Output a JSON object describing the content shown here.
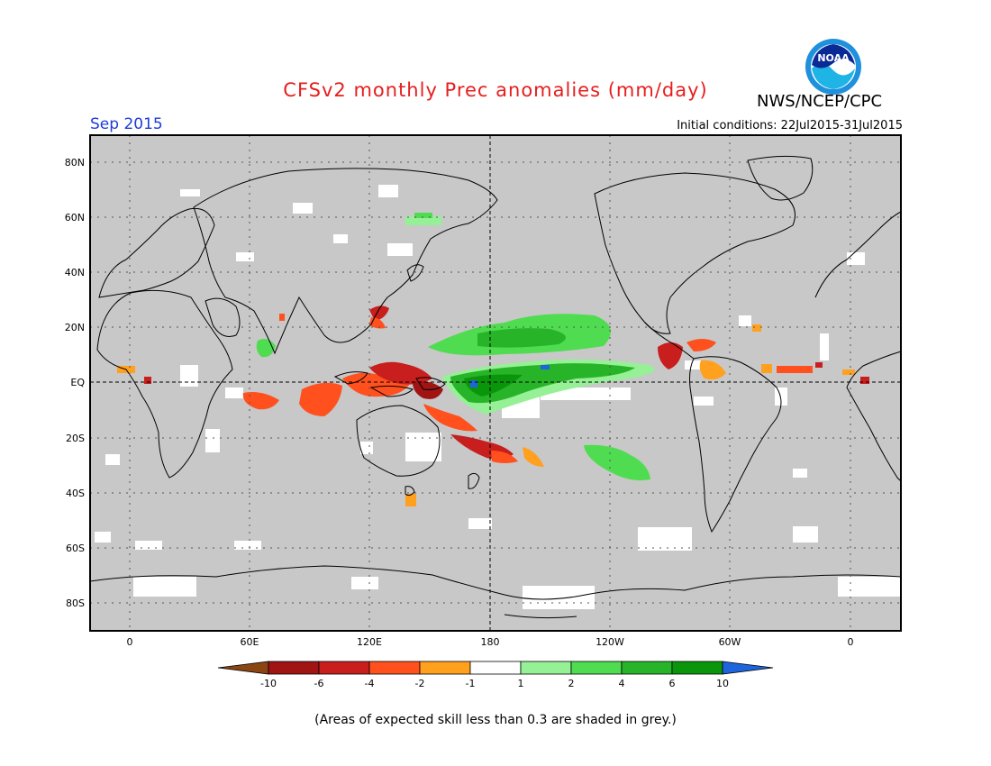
{
  "header": {
    "title": "CFSv2 monthly Prec anomalies (mm/day)",
    "agency": "NWS/NCEP/CPC",
    "logo_text": "NOAA",
    "period": "Sep 2015",
    "initial_conditions": "Initial conditions: 22Jul2015-31Jul2015"
  },
  "map": {
    "lat_labels": [
      "80N",
      "60N",
      "40N",
      "20N",
      "EQ",
      "20S",
      "40S",
      "60S",
      "80S"
    ],
    "lon_labels": [
      "0",
      "60E",
      "120E",
      "180",
      "120W",
      "60W",
      "0"
    ],
    "background_color": "#c8c8c8",
    "masked_note": "grey = expected skill less than 0.3"
  },
  "colorbar": {
    "labels": [
      "-10",
      "-6",
      "-4",
      "-2",
      "-1",
      "1",
      "2",
      "4",
      "6",
      "10"
    ],
    "colors": [
      "#8b4513",
      "#a01414",
      "#c81e1e",
      "#ff501e",
      "#ffa01e",
      "#ffffff",
      "#96f096",
      "#50dc50",
      "#28b428",
      "#0a960a",
      "#1e64dc"
    ]
  },
  "footnote": "(Areas of expected skill less than 0.3 are shaded in grey.)"
}
